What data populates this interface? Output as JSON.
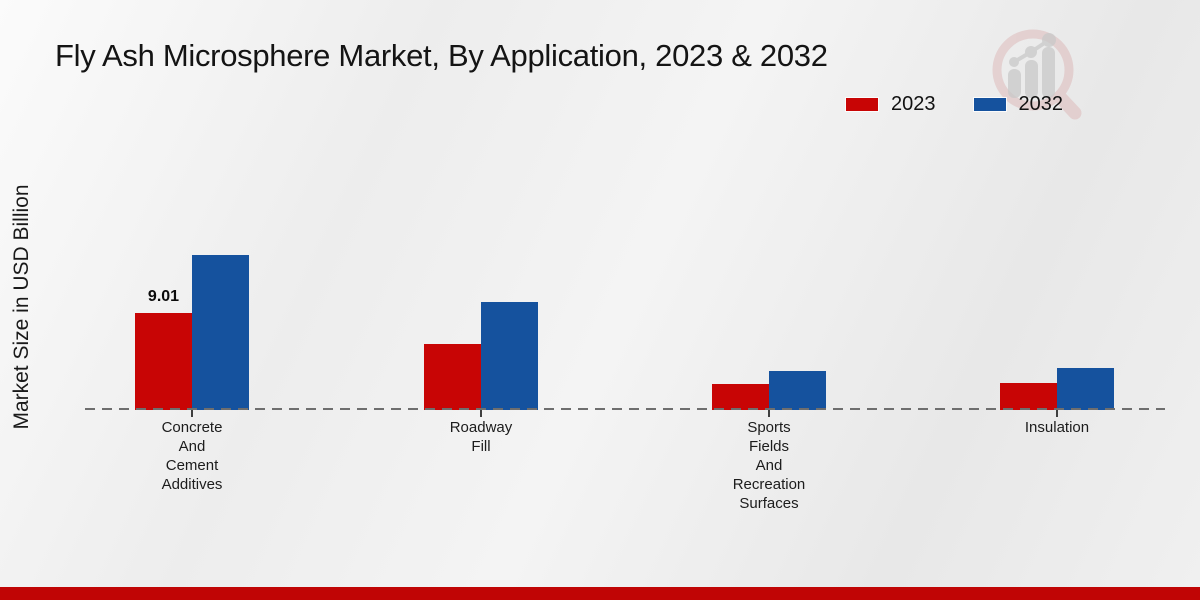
{
  "chart_data": {
    "type": "bar",
    "title": "Fly Ash Microsphere Market, By Application, 2023 & 2032",
    "xlabel": "",
    "ylabel": "Market Size in USD Billion",
    "categories": [
      "Concrete And Cement Additives",
      "Roadway Fill",
      "Sports Fields And Recreation Surfaces",
      "Insulation"
    ],
    "categories_wrapped": [
      [
        "Concrete",
        "And",
        "Cement",
        "Additives"
      ],
      [
        "Roadway",
        "Fill"
      ],
      [
        "Sports",
        "Fields",
        "And",
        "Recreation",
        "Surfaces"
      ],
      [
        "Insulation"
      ]
    ],
    "series": [
      {
        "name": "2023",
        "color": "#c80505",
        "values": [
          9.01,
          6.13,
          2.4,
          2.5
        ],
        "data_labels": [
          "9.01",
          "",
          "",
          ""
        ]
      },
      {
        "name": "2032",
        "color": "#15529e",
        "values": [
          14.4,
          10.0,
          3.6,
          3.9
        ],
        "data_labels": [
          "",
          "",
          "",
          ""
        ]
      }
    ],
    "ylim": [
      0,
      16
    ],
    "grid": false,
    "legend_position": "top-right",
    "baseline_style": "dashed",
    "y_ticks_visible": false
  },
  "colors": {
    "series_2023": "#c80505",
    "series_2032": "#15529e",
    "baseline": "#6e6e6e",
    "bottom_strip": "#c00505",
    "background": "#eeeeee"
  },
  "watermark": {
    "name": "magnifier-bar-chart-logo"
  }
}
